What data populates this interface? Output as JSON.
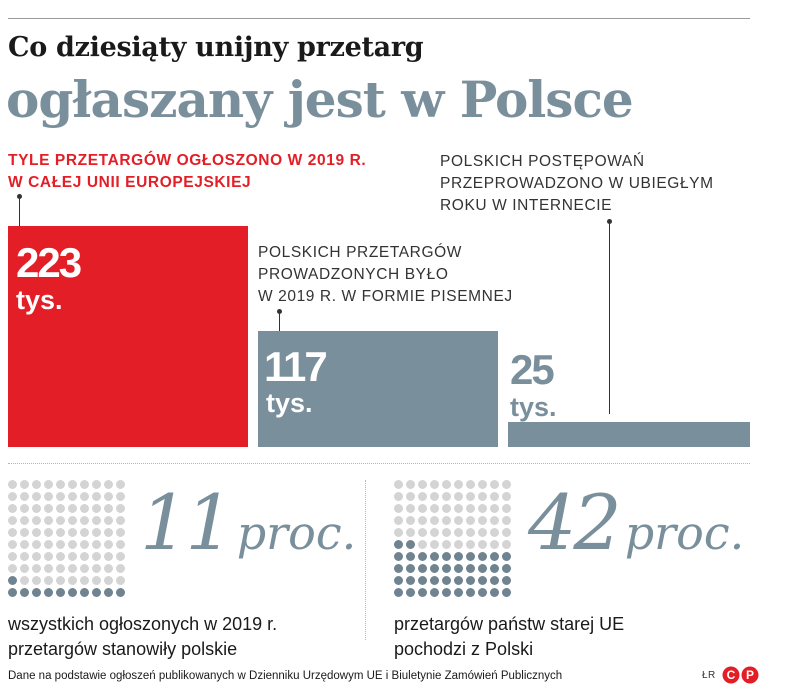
{
  "title_line1": "Co dziesiąty unijny przetarg",
  "title_line2": "ogłaszany jest w Polsce",
  "chart_data": {
    "type": "bar",
    "unit": "tys.",
    "bars": [
      {
        "value": 223,
        "value_label": "223",
        "color": "#e31e26",
        "label_lines": [
          "TYLE PRZETARGÓW OGŁOSZONO W 2019 R.",
          "W CAŁEJ UNII EUROPEJSKIEJ"
        ]
      },
      {
        "value": 117,
        "value_label": "117",
        "color": "#7a8f9c",
        "label_lines": [
          "POLSKICH PRZETARGÓW",
          "PROWADZONYCH BYŁO",
          "W 2019 R. W FORMIE PISEMNEJ"
        ]
      },
      {
        "value": 25,
        "value_label": "25",
        "color": "#7a8f9c",
        "label_lines": [
          "POLSKICH POSTĘPOWAŃ",
          "PRZEPROWADZONO W UBIEGŁYM",
          "ROKU W INTERNECIE"
        ]
      }
    ]
  },
  "stats": [
    {
      "percent": 11,
      "number": "11",
      "unit": "proc.",
      "desc_lines": [
        "wszystkich ogłoszonych w 2019 r.",
        "przetargów stanowiły polskie"
      ]
    },
    {
      "percent": 42,
      "number": "42",
      "unit": "proc.",
      "desc_lines": [
        "przetargów państw starej UE",
        "pochodzi z Polski"
      ]
    }
  ],
  "source": "Dane na podstawie ogłoszeń publikowanych w Dzienniku Urzędowym UE i Biuletynie Zamówień Publicznych",
  "credit": "ŁR",
  "logo_letters": [
    "C",
    "P"
  ],
  "colors": {
    "accent_red": "#e31e26",
    "slate": "#7a8f9c",
    "dot_active": "#6f8390",
    "dot_inactive": "#d4d4d4"
  }
}
